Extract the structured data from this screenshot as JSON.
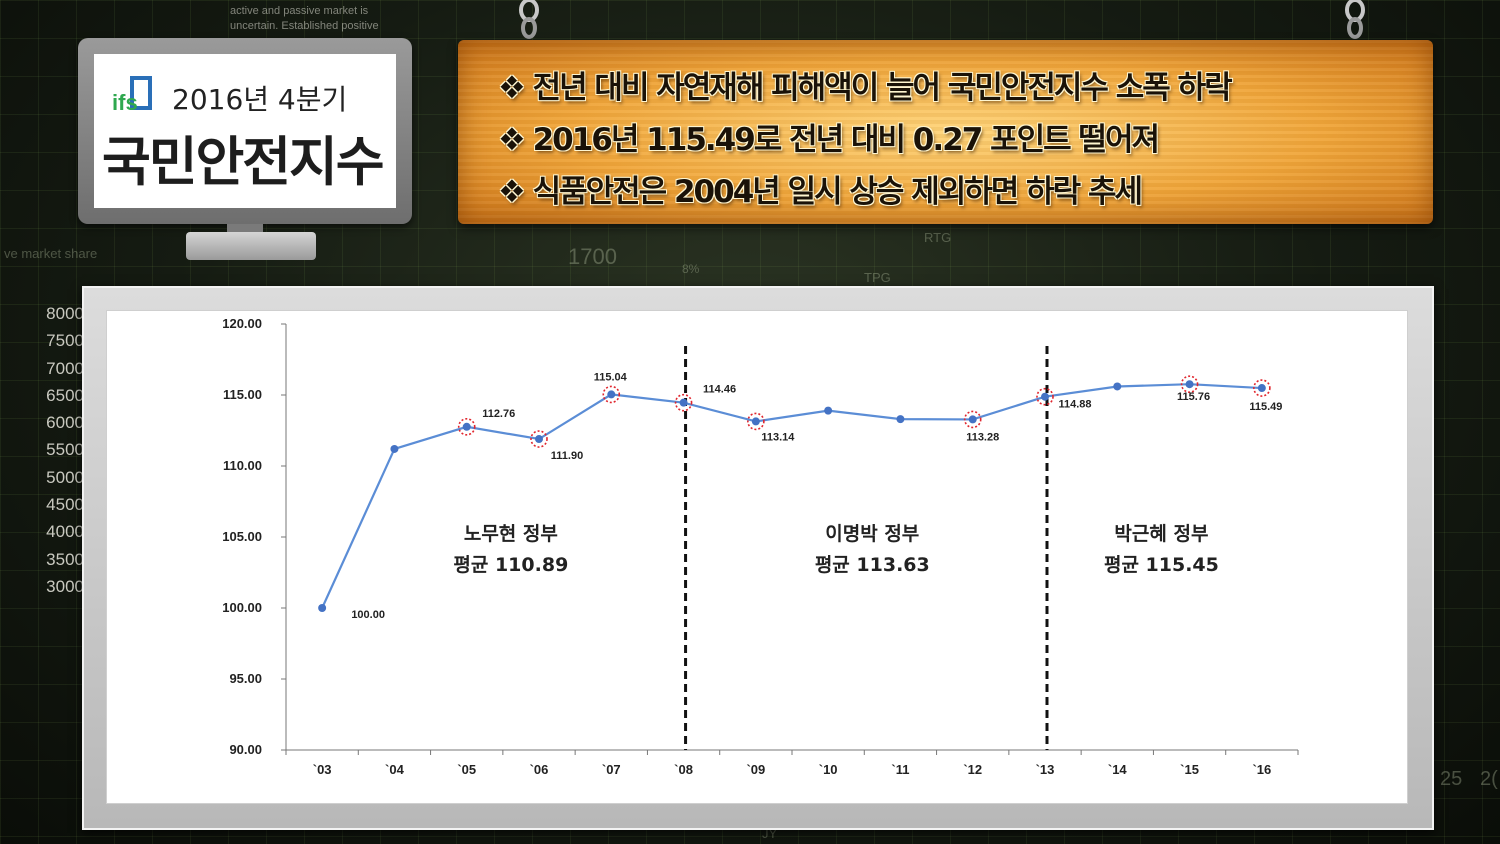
{
  "background": {
    "scale_values": [
      "8000",
      "7500",
      "7000",
      "6500",
      "6000",
      "5500",
      "5000",
      "4500",
      "4000",
      "3500",
      "3000"
    ],
    "note_lines": [
      "active and passive market is",
      "uncertain. Established positive"
    ],
    "labels": [
      "1700",
      "RTG",
      "TPG",
      "ve market share",
      "8%",
      "25",
      "2(",
      "JY"
    ]
  },
  "logo": {
    "mark_text": "ifs",
    "line1": "2016년 4분기",
    "line2": "국민안전지수"
  },
  "headline": {
    "bullet": "❖",
    "items": [
      "전년 대비 자연재해 피해액이 늘어 국민안전지수 소폭 하락",
      "2016년 115.49로 전년 대비 0.27 포인트 떨어져",
      "식품안전은 2004년 일시 상승 제외하면 하락 추세"
    ]
  },
  "colors": {
    "line": "#5b8dd6",
    "marker": "#4472c4",
    "highlight": "#e0262e",
    "board": "#f0a63a"
  },
  "chart_data": {
    "type": "line",
    "x": [
      "`03",
      "`04",
      "`05",
      "`06",
      "`07",
      "`08",
      "`09",
      "`10",
      "`11",
      "`12",
      "`13",
      "`14",
      "`15",
      "`16"
    ],
    "values": [
      100.0,
      111.2,
      112.76,
      111.9,
      115.04,
      114.46,
      113.14,
      113.9,
      113.3,
      113.28,
      114.88,
      115.6,
      115.76,
      115.49
    ],
    "data_labels": [
      {
        "index": 0,
        "text": "100.00"
      },
      {
        "index": 2,
        "text": "112.76"
      },
      {
        "index": 3,
        "text": "111.90"
      },
      {
        "index": 4,
        "text": "115.04"
      },
      {
        "index": 5,
        "text": "114.46"
      },
      {
        "index": 6,
        "text": "113.14"
      },
      {
        "index": 9,
        "text": "113.28"
      },
      {
        "index": 10,
        "text": "114.88"
      },
      {
        "index": 12,
        "text": "115.76"
      },
      {
        "index": 13,
        "text": "115.49"
      }
    ],
    "highlighted": [
      2,
      3,
      4,
      5,
      6,
      9,
      10,
      12,
      13
    ],
    "y_ticks": [
      "120.00",
      "115.00",
      "110.00",
      "105.00",
      "100.00",
      "95.00",
      "90.00"
    ],
    "ylim": [
      90,
      120
    ],
    "y_step": 5,
    "dividers_after_x": [
      "`08",
      "`13"
    ],
    "eras": [
      {
        "name": "노무현 정부",
        "avg": "평균 110.89",
        "from": "`03",
        "to": "`08"
      },
      {
        "name": "이명박 정부",
        "avg": "평균 113.63",
        "from": "`08",
        "to": "`13"
      },
      {
        "name": "박근혜 정부",
        "avg": "평균 115.45",
        "from": "`13",
        "to": "`16"
      }
    ],
    "title": "",
    "xlabel": "",
    "ylabel": "",
    "grid": false
  }
}
